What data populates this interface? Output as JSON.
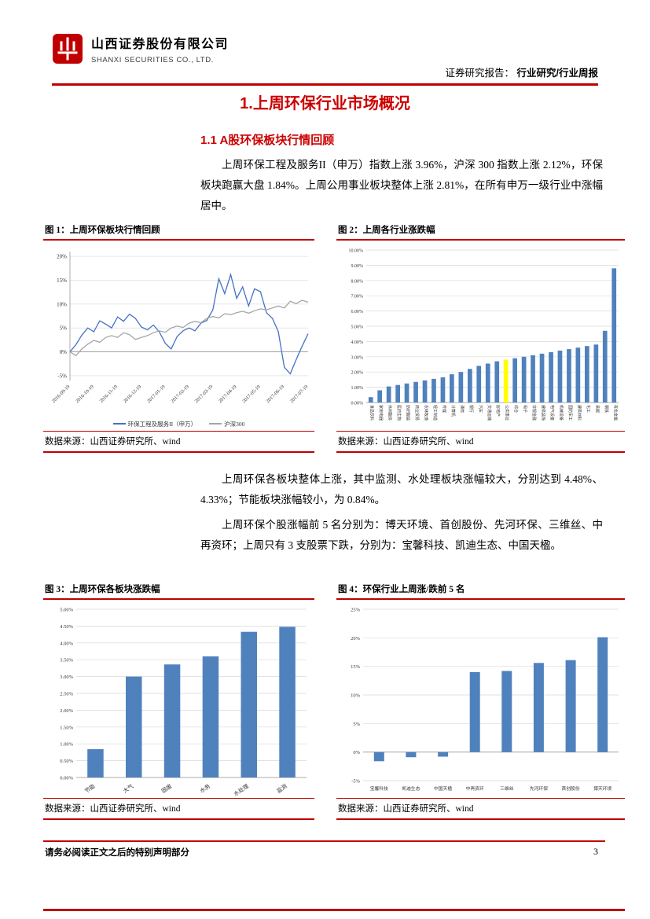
{
  "colors": {
    "accent_red": "#C00000",
    "title_red": "#CC0000",
    "bar_blue": "#4F81BD",
    "highlight_yellow": "#FFFF00",
    "hs300_gray": "#A6A6A6",
    "env_index_blue": "#4472C4"
  },
  "header": {
    "company_cn": "山西证券股份有限公司",
    "company_en": "SHANXI SECURITIES CO., LTD.",
    "report_label": "证券研究报告：",
    "report_category": "行业研究/行业周报"
  },
  "content": {
    "title": "1.上周环保行业市场概况",
    "section_heading": "1.1 A股环保板块行情回顾",
    "para1": "上周环保工程及服务II（申万）指数上涨 3.96%，沪深 300 指数上涨 2.12%，环保板块跑赢大盘 1.84%。上周公用事业板块整体上涨 2.81%，在所有申万一级行业中涨幅居中。",
    "para2": "上周环保各板块整体上涨，其中监测、水处理板块涨幅较大，分别达到 4.48%、4.33%；节能板块涨幅较小，为 0.84%。",
    "para3": "上周环保个股涨幅前 5 名分别为：博天环境、首创股份、先河环保、三维丝、中再资环；上周只有 3 支股票下跌，分别为：宝馨科技、凯迪生态、中国天楹。"
  },
  "figures": [
    {
      "caption": "图 1：上周环保板块行情回顾",
      "source": "数据来源：山西证券研究所、wind"
    },
    {
      "caption": "图 2：上周各行业涨跌幅",
      "source": "数据来源：山西证券研究所、wind"
    },
    {
      "caption": "图 3：上周环保各板块涨跌幅",
      "source": "数据来源：山西证券研究所、wind"
    },
    {
      "caption": "图 4：环保行业上周涨/跌前 5 名",
      "source": "数据来源：山西证券研究所、wind"
    }
  ],
  "page": {
    "footer_notice": "请务必阅读正文之后的特别声明部分",
    "page_number": "3"
  },
  "chart_data": [
    {
      "id": "fig1",
      "type": "line",
      "title": "上周环保板块行情回顾",
      "x_ticks": [
        "2016-09-19",
        "2016-10-19",
        "2016-11-19",
        "2016-12-19",
        "2017-01-19",
        "2017-02-19",
        "2017-03-19",
        "2017-04-19",
        "2017-05-19",
        "2017-06-19",
        "2017-07-19"
      ],
      "y_ticks": [
        20,
        15,
        10,
        5,
        0,
        -5
      ],
      "y_tick_labels": [
        "20%",
        "15%",
        "10%",
        "5%",
        "0%",
        "-5%"
      ],
      "ylim": [
        -6,
        21
      ],
      "grid": true,
      "legend_position": "bottom",
      "series": [
        {
          "name": "环保工程及服务II（申万）",
          "color": "#4472C4",
          "values": [
            0,
            1.5,
            3.5,
            5,
            4.2,
            6.5,
            5.8,
            5,
            7.3,
            6.4,
            7.9,
            7,
            5.2,
            4.6,
            5.6,
            4.2,
            1.8,
            0.6,
            3.2,
            4.4,
            5,
            4.4,
            6,
            6.6,
            8.8,
            15.3,
            12.2,
            16.2,
            11.2,
            13.6,
            9.6,
            13.2,
            12.6,
            8.2,
            7,
            4.2,
            -3.2,
            -4.6,
            -1.6,
            1.2,
            3.8
          ]
        },
        {
          "name": "沪深300",
          "color": "#A6A6A6",
          "values": [
            0,
            -0.8,
            0.6,
            1.6,
            2.4,
            2,
            3,
            3.4,
            3,
            4,
            3.6,
            2.6,
            3,
            3.4,
            4,
            4.4,
            4.1,
            5,
            5.4,
            5.1,
            6,
            6.4,
            6.1,
            7,
            7.4,
            7.1,
            8,
            7.8,
            8.2,
            8.5,
            8.1,
            8.6,
            9,
            8.8,
            9.2,
            9.6,
            9.2,
            10.6,
            10.1,
            10.8,
            10.4
          ]
        }
      ]
    },
    {
      "id": "fig2",
      "type": "bar",
      "title": "上周各行业涨跌幅",
      "categories": [
        "食品饮料",
        "家用电器",
        "休闲服务",
        "医药生物",
        "纺织服装",
        "商业贸易",
        "农林牧渔",
        "轻工制造",
        "传媒",
        "计算机",
        "通信",
        "银行",
        "汽车",
        "交通运输",
        "房地产",
        "公用事业",
        "综合",
        "电子",
        "非银金融",
        "建筑装饰",
        "电气设备",
        "机械设备",
        "国防军工",
        "建筑材料",
        "化工",
        "采掘",
        "钢铁",
        "有色金属"
      ],
      "values": [
        0.35,
        0.8,
        1.05,
        1.15,
        1.25,
        1.35,
        1.45,
        1.55,
        1.65,
        1.85,
        2.0,
        2.2,
        2.4,
        2.55,
        2.7,
        2.81,
        2.9,
        3.0,
        3.1,
        3.2,
        3.3,
        3.4,
        3.5,
        3.6,
        3.7,
        3.8,
        4.7,
        8.8
      ],
      "highlight": "公用事业",
      "highlight_color": "#FFFF00",
      "bar_color": "#4F81BD",
      "y_ticks": [
        10,
        9,
        8,
        7,
        6,
        5,
        4,
        3,
        2,
        1,
        0
      ],
      "y_tick_labels": [
        "10.00%",
        "9.00%",
        "8.00%",
        "7.00%",
        "6.00%",
        "5.00%",
        "4.00%",
        "3.00%",
        "2.00%",
        "1.00%",
        "0.00%"
      ],
      "ylim": [
        0,
        10
      ],
      "grid": true
    },
    {
      "id": "fig3",
      "type": "bar",
      "title": "上周环保各板块涨跌幅",
      "categories": [
        "节能",
        "大气",
        "固废",
        "水务",
        "水处理",
        "监测"
      ],
      "values": [
        0.84,
        3.0,
        3.36,
        3.6,
        4.33,
        4.48
      ],
      "bar_color": "#4F81BD",
      "y_ticks": [
        5,
        4.5,
        4,
        3.5,
        3,
        2.5,
        2,
        1.5,
        1,
        0.5,
        0
      ],
      "y_tick_labels": [
        "5.00%",
        "4.50%",
        "4.00%",
        "3.50%",
        "3.00%",
        "2.50%",
        "2.00%",
        "1.50%",
        "1.00%",
        "0.50%",
        "0.00%"
      ],
      "ylim": [
        0,
        5
      ],
      "grid": true
    },
    {
      "id": "fig4",
      "type": "bar",
      "title": "环保行业上周涨/跌前 5 名",
      "categories": [
        "宝馨科技",
        "凯迪生态",
        "中国天楹",
        "中再资环",
        "三维丝",
        "先河环保",
        "首创股份",
        "博天环境"
      ],
      "values": [
        -1.6,
        -0.9,
        -0.8,
        14.0,
        14.2,
        15.6,
        16.1,
        20.1
      ],
      "bar_color": "#4F81BD",
      "y_ticks": [
        25,
        20,
        15,
        10,
        5,
        0,
        -5
      ],
      "y_tick_labels": [
        "25%",
        "20%",
        "15%",
        "10%",
        "5%",
        "0%",
        "-5%"
      ],
      "ylim": [
        -5,
        25
      ],
      "grid": true
    }
  ]
}
